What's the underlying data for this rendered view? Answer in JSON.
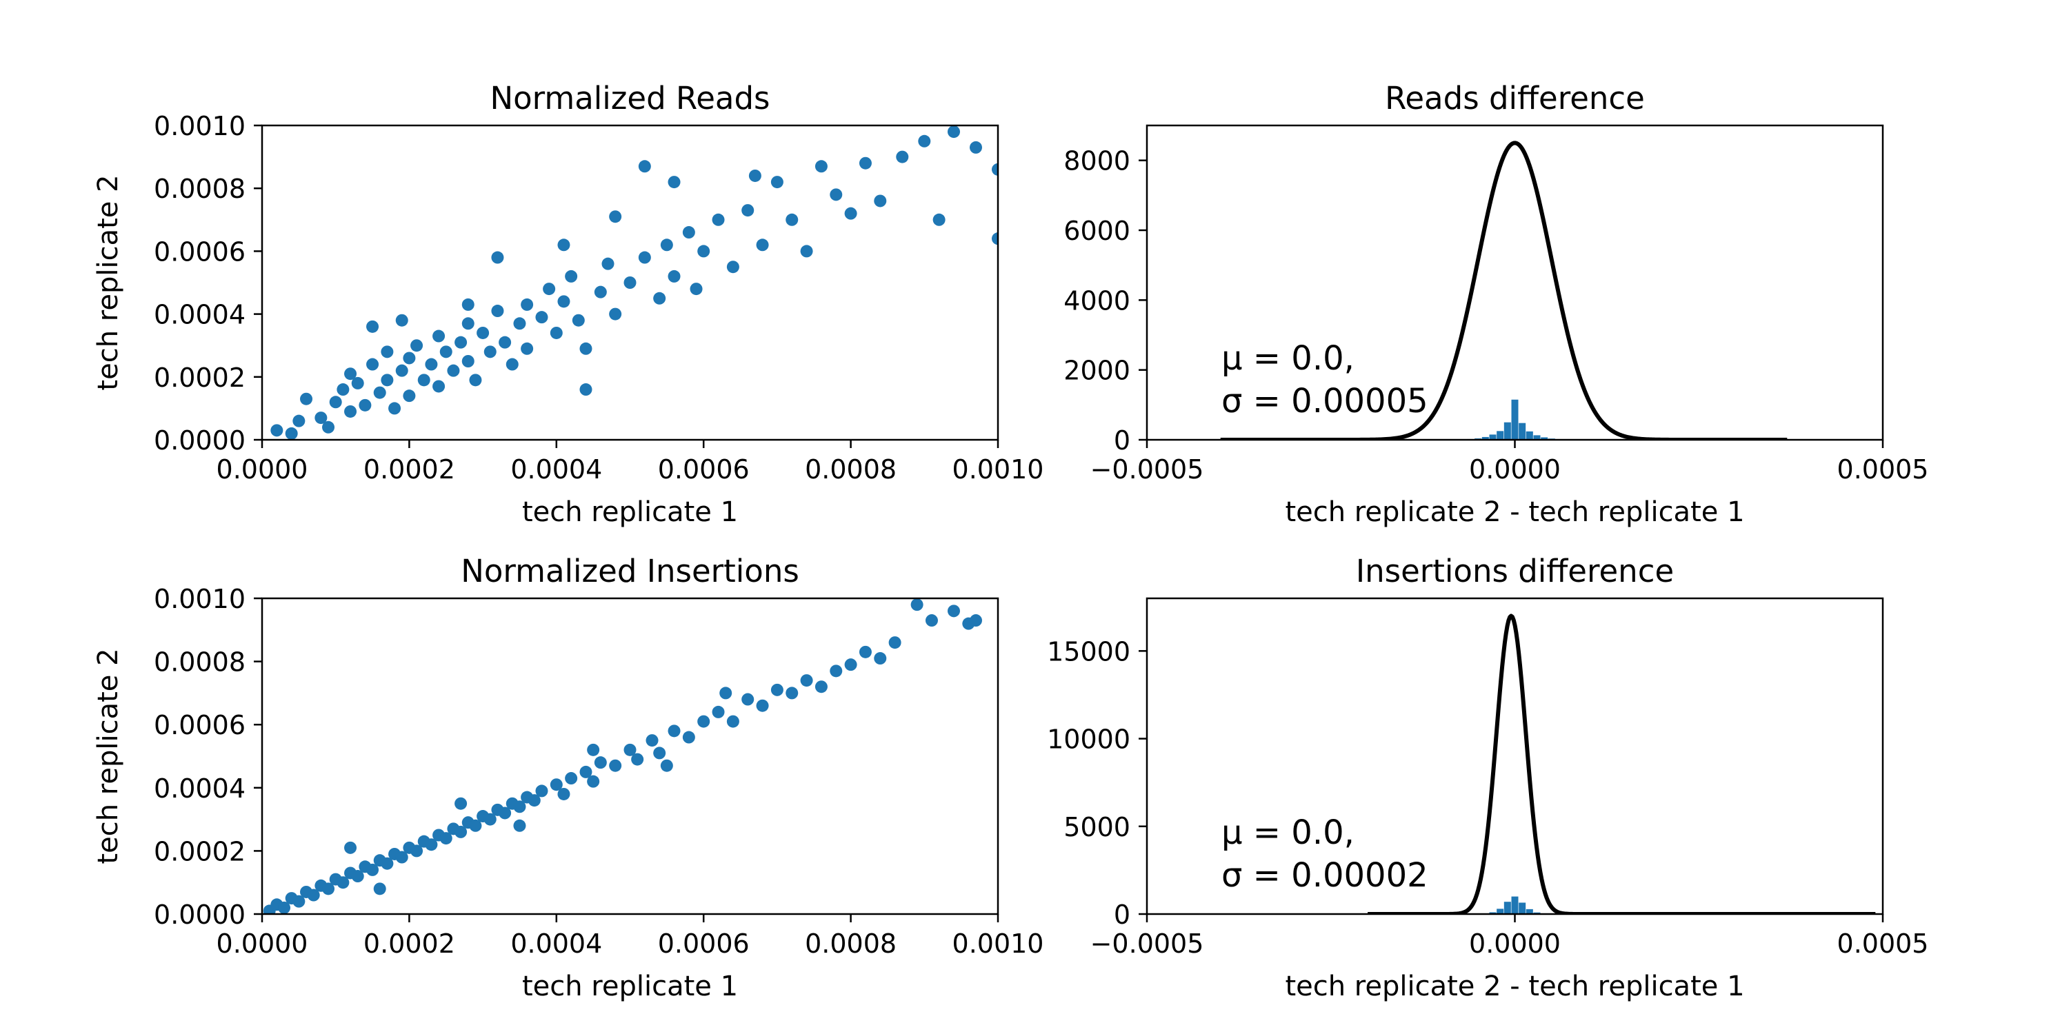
{
  "chart_data": [
    {
      "id": "normalized-reads",
      "type": "scatter",
      "title": "Normalized Reads",
      "xlabel": "tech replicate 1",
      "ylabel": "tech replicate 2",
      "xlim": [
        0,
        0.001
      ],
      "ylim": [
        0,
        0.001
      ],
      "xticks": [
        "0.0000",
        "0.0002",
        "0.0004",
        "0.0006",
        "0.0008",
        "0.0010"
      ],
      "yticks": [
        "0.0000",
        "0.0002",
        "0.0004",
        "0.0006",
        "0.0008",
        "0.0010"
      ],
      "color": "#1f77b4",
      "points": [
        [
          2e-05,
          3e-05
        ],
        [
          4e-05,
          2e-05
        ],
        [
          5e-05,
          6e-05
        ],
        [
          6e-05,
          0.00013
        ],
        [
          8e-05,
          7e-05
        ],
        [
          9e-05,
          4e-05
        ],
        [
          0.0001,
          0.00012
        ],
        [
          0.00011,
          0.00016
        ],
        [
          0.00012,
          9e-05
        ],
        [
          0.00012,
          0.00021
        ],
        [
          0.00013,
          0.00018
        ],
        [
          0.00014,
          0.00011
        ],
        [
          0.00015,
          0.00024
        ],
        [
          0.00016,
          0.00015
        ],
        [
          0.00017,
          0.00019
        ],
        [
          0.00017,
          0.00028
        ],
        [
          0.00018,
          0.0001
        ],
        [
          0.00019,
          0.00022
        ],
        [
          0.0002,
          0.00026
        ],
        [
          0.0002,
          0.00014
        ],
        [
          0.00021,
          0.0003
        ],
        [
          0.00022,
          0.00019
        ],
        [
          0.00023,
          0.00024
        ],
        [
          0.00024,
          0.00033
        ],
        [
          0.00024,
          0.00017
        ],
        [
          0.00025,
          0.00028
        ],
        [
          0.00026,
          0.00022
        ],
        [
          0.00027,
          0.00031
        ],
        [
          0.00028,
          0.00037
        ],
        [
          0.00028,
          0.00025
        ],
        [
          0.00029,
          0.00019
        ],
        [
          0.0003,
          0.00034
        ],
        [
          0.00031,
          0.00028
        ],
        [
          0.00032,
          0.00041
        ],
        [
          0.00033,
          0.00031
        ],
        [
          0.00034,
          0.00024
        ],
        [
          0.00035,
          0.00037
        ],
        [
          0.00036,
          0.00043
        ],
        [
          0.00036,
          0.00029
        ],
        [
          0.00038,
          0.00039
        ],
        [
          0.00039,
          0.00048
        ],
        [
          0.0004,
          0.00034
        ],
        [
          0.00041,
          0.00044
        ],
        [
          0.00042,
          0.00052
        ],
        [
          0.00043,
          0.00038
        ],
        [
          0.00044,
          0.00029
        ],
        [
          0.00046,
          0.00047
        ],
        [
          0.00047,
          0.00056
        ],
        [
          0.00048,
          0.0004
        ],
        [
          0.0005,
          0.0005
        ],
        [
          0.00052,
          0.00058
        ],
        [
          0.00054,
          0.00045
        ],
        [
          0.00055,
          0.00062
        ],
        [
          0.00056,
          0.00052
        ],
        [
          0.00058,
          0.00066
        ],
        [
          0.00059,
          0.00048
        ],
        [
          0.0006,
          0.0006
        ],
        [
          0.00062,
          0.0007
        ],
        [
          0.00064,
          0.00055
        ],
        [
          0.00066,
          0.00073
        ],
        [
          0.00068,
          0.00062
        ],
        [
          0.0007,
          0.00082
        ],
        [
          0.00072,
          0.0007
        ],
        [
          0.00074,
          0.0006
        ],
        [
          0.00076,
          0.00087
        ],
        [
          0.00078,
          0.00078
        ],
        [
          0.0008,
          0.00072
        ],
        [
          0.00082,
          0.00088
        ],
        [
          0.00084,
          0.00076
        ],
        [
          0.00087,
          0.0009
        ],
        [
          0.0009,
          0.00095
        ],
        [
          0.00092,
          0.0007
        ],
        [
          0.00094,
          0.00098
        ],
        [
          0.00097,
          0.00093
        ],
        [
          0.001,
          0.00086
        ],
        [
          0.001,
          0.00064
        ],
        [
          0.00052,
          0.00087
        ],
        [
          0.00041,
          0.00062
        ],
        [
          0.00032,
          0.00058
        ],
        [
          0.00028,
          0.00043
        ],
        [
          0.00056,
          0.00082
        ],
        [
          0.00044,
          0.00016
        ],
        [
          0.00067,
          0.00084
        ],
        [
          0.00048,
          0.00071
        ],
        [
          0.00019,
          0.00038
        ],
        [
          0.00015,
          0.00036
        ]
      ]
    },
    {
      "id": "reads-difference",
      "type": "area",
      "title": "Reads difference",
      "xlabel": "tech replicate 2 - tech replicate 1",
      "ylabel": "",
      "xlim": [
        -0.0005,
        0.0005
      ],
      "ylim": [
        0,
        9000
      ],
      "xticks": [
        "−0.0005",
        "0.0000",
        "0.0005"
      ],
      "yticks": [
        "0",
        "2000",
        "4000",
        "6000",
        "8000"
      ],
      "color": "#1f77b4",
      "hist": [
        [
          -6e-05,
          20
        ],
        [
          -5e-05,
          40
        ],
        [
          -4e-05,
          80
        ],
        [
          -3e-05,
          150
        ],
        [
          -2e-05,
          250
        ],
        [
          -1e-05,
          500
        ],
        [
          0,
          1150
        ],
        [
          1e-05,
          480
        ],
        [
          2e-05,
          240
        ],
        [
          3e-05,
          130
        ],
        [
          4e-05,
          70
        ],
        [
          5e-05,
          35
        ],
        [
          6e-05,
          15
        ]
      ],
      "fit": {
        "mu": 0,
        "sigma": 5e-05,
        "peak": 8500,
        "x_range": [
          -0.0004,
          0.00037
        ]
      },
      "annotation": [
        "μ = 0.0,",
        "σ = 0.00005"
      ]
    },
    {
      "id": "normalized-insertions",
      "type": "scatter",
      "title": "Normalized Insertions",
      "xlabel": "tech replicate 1",
      "ylabel": "tech replicate 2",
      "xlim": [
        0,
        0.001
      ],
      "ylim": [
        0,
        0.001
      ],
      "xticks": [
        "0.0000",
        "0.0002",
        "0.0004",
        "0.0006",
        "0.0008",
        "0.0010"
      ],
      "yticks": [
        "0.0000",
        "0.0002",
        "0.0004",
        "0.0006",
        "0.0008",
        "0.0010"
      ],
      "color": "#1f77b4",
      "points": [
        [
          1e-05,
          1e-05
        ],
        [
          2e-05,
          3e-05
        ],
        [
          3e-05,
          2e-05
        ],
        [
          4e-05,
          5e-05
        ],
        [
          5e-05,
          4e-05
        ],
        [
          6e-05,
          7e-05
        ],
        [
          7e-05,
          6e-05
        ],
        [
          8e-05,
          9e-05
        ],
        [
          9e-05,
          8e-05
        ],
        [
          0.0001,
          0.00011
        ],
        [
          0.00011,
          0.0001
        ],
        [
          0.00012,
          0.00013
        ],
        [
          0.00013,
          0.00012
        ],
        [
          0.00014,
          0.00015
        ],
        [
          0.00015,
          0.00014
        ],
        [
          0.00016,
          0.00017
        ],
        [
          0.00017,
          0.00016
        ],
        [
          0.00018,
          0.00019
        ],
        [
          0.00019,
          0.00018
        ],
        [
          0.0002,
          0.00021
        ],
        [
          0.00021,
          0.0002
        ],
        [
          0.00022,
          0.00023
        ],
        [
          0.00023,
          0.00022
        ],
        [
          0.00024,
          0.00025
        ],
        [
          0.00025,
          0.00024
        ],
        [
          0.00026,
          0.00027
        ],
        [
          0.00027,
          0.00026
        ],
        [
          0.00028,
          0.00029
        ],
        [
          0.00029,
          0.00028
        ],
        [
          0.0003,
          0.00031
        ],
        [
          0.00031,
          0.0003
        ],
        [
          0.00032,
          0.00033
        ],
        [
          0.00033,
          0.00032
        ],
        [
          0.00034,
          0.00035
        ],
        [
          0.00035,
          0.00034
        ],
        [
          0.00036,
          0.00037
        ],
        [
          0.00037,
          0.00036
        ],
        [
          0.00038,
          0.00039
        ],
        [
          0.0004,
          0.00041
        ],
        [
          0.00041,
          0.00038
        ],
        [
          0.00042,
          0.00043
        ],
        [
          0.00044,
          0.00045
        ],
        [
          0.00045,
          0.00042
        ],
        [
          0.00046,
          0.00048
        ],
        [
          0.00048,
          0.00047
        ],
        [
          0.0005,
          0.00052
        ],
        [
          0.00051,
          0.00049
        ],
        [
          0.00053,
          0.00055
        ],
        [
          0.00054,
          0.00051
        ],
        [
          0.00056,
          0.00058
        ],
        [
          0.00058,
          0.00056
        ],
        [
          0.0006,
          0.00061
        ],
        [
          0.00062,
          0.00064
        ],
        [
          0.00064,
          0.00061
        ],
        [
          0.00066,
          0.00068
        ],
        [
          0.00068,
          0.00066
        ],
        [
          0.0007,
          0.00071
        ],
        [
          0.00072,
          0.0007
        ],
        [
          0.00074,
          0.00074
        ],
        [
          0.00076,
          0.00072
        ],
        [
          0.00078,
          0.00077
        ],
        [
          0.0008,
          0.00079
        ],
        [
          0.00082,
          0.00083
        ],
        [
          0.00084,
          0.00081
        ],
        [
          0.00086,
          0.00086
        ],
        [
          0.00089,
          0.00098
        ],
        [
          0.00091,
          0.00093
        ],
        [
          0.00094,
          0.00096
        ],
        [
          0.00096,
          0.00092
        ],
        [
          0.00097,
          0.00093
        ],
        [
          0.00012,
          0.00021
        ],
        [
          0.00016,
          8e-05
        ],
        [
          0.00027,
          0.00035
        ],
        [
          0.00035,
          0.00028
        ],
        [
          0.00045,
          0.00052
        ],
        [
          0.00055,
          0.00047
        ],
        [
          0.00063,
          0.0007
        ]
      ]
    },
    {
      "id": "insertions-difference",
      "type": "area",
      "title": "Insertions difference",
      "xlabel": "tech replicate 2 - tech replicate 1",
      "ylabel": "",
      "xlim": [
        -0.0005,
        0.0005
      ],
      "ylim": [
        0,
        18000
      ],
      "xticks": [
        "−0.0005",
        "0.0000",
        "0.0005"
      ],
      "yticks": [
        "0",
        "5000",
        "10000",
        "15000"
      ],
      "color": "#1f77b4",
      "hist": [
        [
          -3e-05,
          100
        ],
        [
          -2e-05,
          300
        ],
        [
          -1e-05,
          700
        ],
        [
          0,
          1000
        ],
        [
          1e-05,
          650
        ],
        [
          2e-05,
          280
        ],
        [
          3e-05,
          90
        ]
      ],
      "fit": {
        "mu": -5e-06,
        "sigma": 2e-05,
        "peak": 17000,
        "x_range": [
          -0.0002,
          0.00049
        ]
      },
      "annotation": [
        "μ = 0.0,",
        "σ = 0.00002"
      ]
    }
  ]
}
